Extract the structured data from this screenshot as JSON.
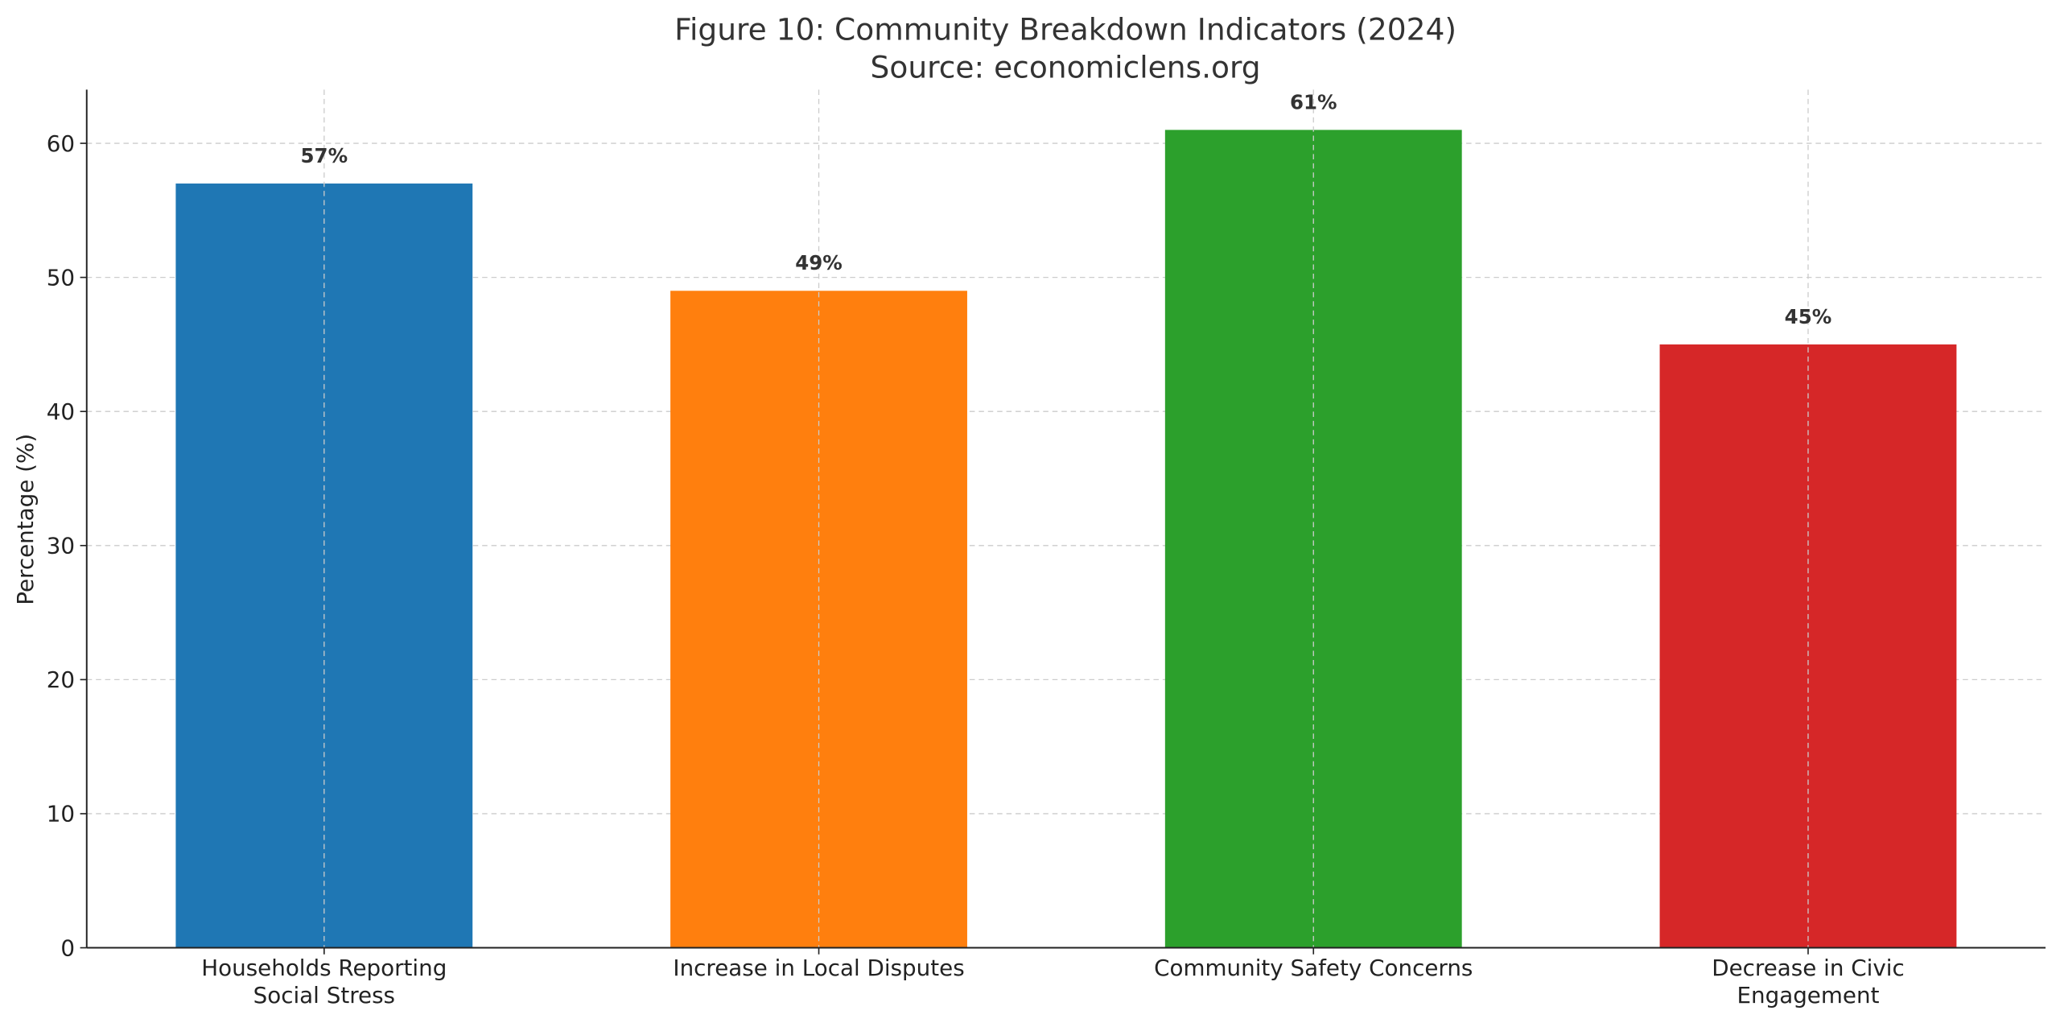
{
  "chart_data": {
    "type": "bar",
    "title": "Figure 10: Community Breakdown Indicators (2024)",
    "subtitle": "Source: economiclens.org",
    "xlabel": "",
    "ylabel": "Percentage (%)",
    "categories": [
      [
        "Households Reporting",
        "Social Stress"
      ],
      [
        "Increase in Local Disputes"
      ],
      [
        "Community Safety Concerns"
      ],
      [
        "Decrease in Civic",
        "Engagement"
      ]
    ],
    "values": [
      57,
      49,
      61,
      45
    ],
    "data_labels": [
      "57%",
      "49%",
      "61%",
      "45%"
    ],
    "colors": [
      "#1f77b4",
      "#ff7f0e",
      "#2ca02c",
      "#d62728"
    ],
    "ylim": [
      0,
      64
    ],
    "yticks": [
      0,
      10,
      20,
      30,
      40,
      50,
      60
    ],
    "grid": true,
    "legend": "none"
  }
}
